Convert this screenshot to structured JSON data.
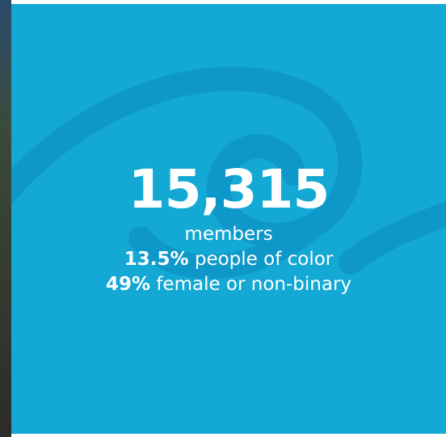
{
  "stat": {
    "number": "15,315",
    "label": "members",
    "lines": [
      {
        "bold": "13.5%",
        "text": "people of color"
      },
      {
        "bold": "49%",
        "text": "female or non-binary"
      }
    ]
  }
}
